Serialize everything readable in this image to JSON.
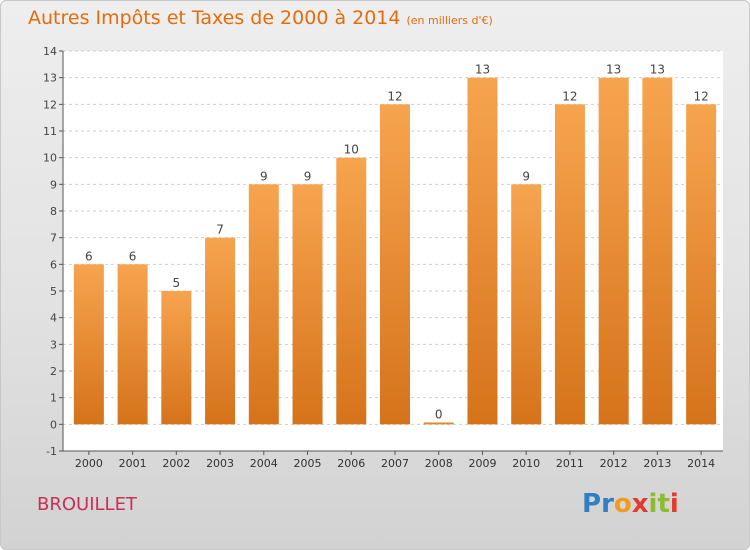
{
  "title": "Autres Impôts et Taxes de 2000 à 2014",
  "title_unit": "(en milliers d'€)",
  "commune": "BROUILLET",
  "logo": {
    "text": "Proxiti",
    "letters": [
      "P",
      "r",
      "o",
      "x",
      "i",
      "t",
      "i"
    ],
    "colors": [
      "#2f7fc1",
      "#2f7fc1",
      "#f39a1c",
      "#e23a2e",
      "#8cbb2d",
      "#8cbb2d",
      "#e23a2e"
    ]
  },
  "colors": {
    "bar_top": "#f7a44f",
    "bar_bottom": "#d5731a",
    "title": "#e46c0a",
    "commune": "#cc2e58"
  },
  "chart_data": {
    "type": "bar",
    "categories": [
      "2000",
      "2001",
      "2002",
      "2003",
      "2004",
      "2005",
      "2006",
      "2007",
      "2008",
      "2009",
      "2010",
      "2011",
      "2012",
      "2013",
      "2014"
    ],
    "values": [
      6,
      6,
      5,
      7,
      9,
      9,
      10,
      12,
      0,
      13,
      9,
      12,
      13,
      13,
      12
    ],
    "data_labels": [
      "6",
      "6",
      "5",
      "7",
      "9",
      "9",
      "10",
      "12",
      "0",
      "13",
      "9",
      "12",
      "13",
      "13",
      "12"
    ],
    "ylim": [
      -1,
      14
    ],
    "yticks": [
      -1,
      0,
      1,
      2,
      3,
      4,
      5,
      6,
      7,
      8,
      9,
      10,
      11,
      12,
      13,
      14
    ],
    "ytick_labels": [
      "-1",
      "0",
      "1",
      "2",
      "3",
      "4",
      "5",
      "6",
      "7",
      "8",
      "9",
      "10",
      "11",
      "12",
      "13",
      "14"
    ],
    "grid": true,
    "grid_style": "dashed horizontal",
    "xlabel": "",
    "ylabel": ""
  }
}
